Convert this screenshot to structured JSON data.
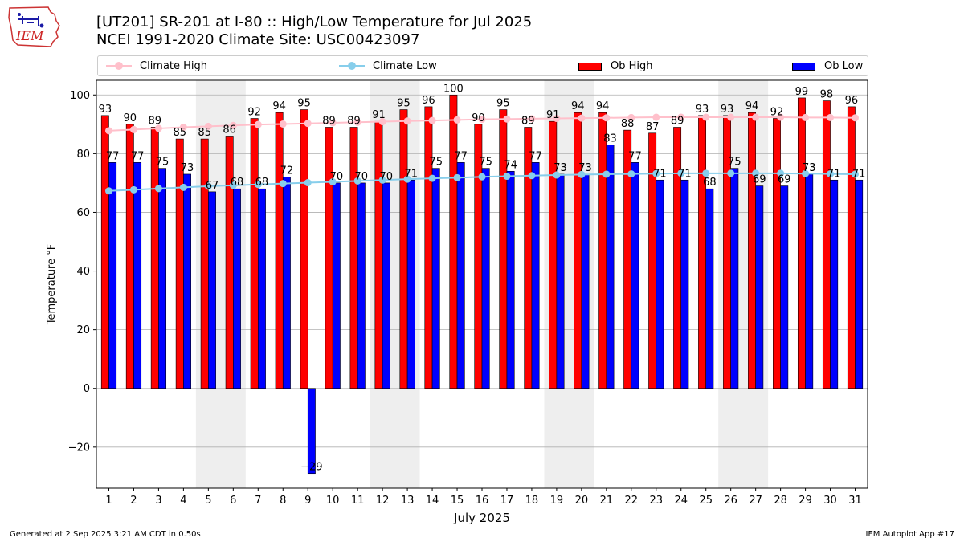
{
  "header": {
    "title_line1": "[UT201] SR-201 at I-80  :: High/Low Temperature for Jul 2025",
    "title_line2": "NCEI 1991-2020 Climate Site: USC00423097"
  },
  "logo": {
    "text": "IEM"
  },
  "legend": {
    "position": "top",
    "items": [
      {
        "label": "Climate High",
        "kind": "line",
        "color": "#ffc0cb"
      },
      {
        "label": "Climate Low",
        "kind": "line",
        "color": "#87ceeb"
      },
      {
        "label": "Ob High",
        "kind": "bar",
        "color": "#ff0000"
      },
      {
        "label": "Ob Low",
        "kind": "bar",
        "color": "#0000ff"
      }
    ]
  },
  "footer": {
    "left": "Generated at 2 Sep 2025 3:21 AM CDT in 0.50s",
    "right": "IEM Autoplot App #17"
  },
  "chart_data": {
    "type": "bar",
    "xlabel": "July 2025",
    "ylabel": "Temperature °F",
    "ylim": [
      -34,
      105
    ],
    "yticks": [
      -20,
      0,
      20,
      40,
      60,
      80,
      100
    ],
    "ytick_labels": [
      "−20",
      "0",
      "20",
      "40",
      "60",
      "80",
      "100"
    ],
    "grid": true,
    "weekend_shading": [
      [
        5,
        6
      ],
      [
        12,
        13
      ],
      [
        19,
        20
      ],
      [
        26,
        27
      ]
    ],
    "categories": [
      "1",
      "2",
      "3",
      "4",
      "5",
      "6",
      "7",
      "8",
      "9",
      "10",
      "11",
      "12",
      "13",
      "14",
      "15",
      "16",
      "17",
      "18",
      "19",
      "20",
      "21",
      "22",
      "23",
      "24",
      "25",
      "26",
      "27",
      "28",
      "29",
      "30",
      "31"
    ],
    "series": [
      {
        "name": "Ob High",
        "kind": "bar",
        "color": "#ff0000",
        "values": [
          93,
          90,
          89,
          85,
          85,
          86,
          92,
          94,
          95,
          89,
          89,
          91,
          95,
          96,
          100,
          90,
          95,
          89,
          91,
          94,
          94,
          88,
          87,
          89,
          93,
          93,
          94,
          92,
          99,
          98,
          96
        ]
      },
      {
        "name": "Ob Low",
        "kind": "bar",
        "color": "#0000ff",
        "values": [
          77,
          77,
          75,
          73,
          67,
          68,
          68,
          72,
          -29,
          70,
          70,
          70,
          71,
          75,
          77,
          75,
          74,
          77,
          73,
          73,
          83,
          77,
          71,
          71,
          68,
          75,
          69,
          69,
          73,
          71,
          71
        ]
      },
      {
        "name": "Climate High",
        "kind": "line",
        "color": "#ffc0cb",
        "values": [
          87.8,
          88.2,
          88.6,
          89.0,
          89.3,
          89.6,
          89.9,
          90.1,
          90.3,
          90.5,
          90.7,
          90.9,
          91.1,
          91.3,
          91.5,
          91.7,
          91.8,
          91.9,
          92.0,
          92.1,
          92.2,
          92.3,
          92.4,
          92.4,
          92.4,
          92.4,
          92.4,
          92.4,
          92.3,
          92.3,
          92.2
        ]
      },
      {
        "name": "Climate Low",
        "kind": "line",
        "color": "#87ceeb",
        "values": [
          67.3,
          67.7,
          68.1,
          68.5,
          68.9,
          69.2,
          69.5,
          69.8,
          70.1,
          70.4,
          70.7,
          71.0,
          71.3,
          71.6,
          71.8,
          72.1,
          72.3,
          72.5,
          72.7,
          72.9,
          73.0,
          73.1,
          73.2,
          73.3,
          73.3,
          73.3,
          73.3,
          73.3,
          73.2,
          73.1,
          73.0
        ]
      }
    ],
    "bar_labels": {
      "high": [
        "93",
        "90",
        "89",
        "85",
        "85",
        "86",
        "92",
        "94",
        "95",
        "89",
        "89",
        "91",
        "95",
        "96",
        "100",
        "90",
        "95",
        "89",
        "91",
        "94",
        "94",
        "88",
        "87",
        "89",
        "93",
        "93",
        "94",
        "92",
        "99",
        "98",
        "96"
      ],
      "low": [
        "77",
        "77",
        "75",
        "73",
        "67",
        "68",
        "68",
        "72",
        "−29",
        "70",
        "70",
        "70",
        "71",
        "75",
        "77",
        "75",
        "74",
        "77",
        "73",
        "73",
        "83",
        "77",
        "71",
        "71",
        "68",
        "75",
        "69",
        "69",
        "73",
        "71",
        "71"
      ]
    }
  }
}
